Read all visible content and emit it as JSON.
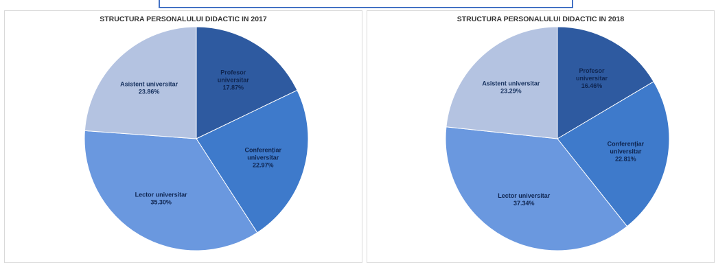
{
  "chart_data": [
    {
      "type": "pie",
      "title": "STRUCTURA PERSONALULUI DIDACTIC IN 2017",
      "slices": [
        {
          "label": "Profesor universitar",
          "percent_text": "17.87%",
          "value": 17.87,
          "color": "#2e5aa0"
        },
        {
          "label": "Conferențiar universitar",
          "percent_text": "22.97%",
          "value": 22.97,
          "color": "#3e7acb"
        },
        {
          "label": "Lector universitar",
          "percent_text": "35.30%",
          "value": 35.3,
          "color": "#6a98df"
        },
        {
          "label": "Asistent universitar",
          "percent_text": "23.86%",
          "value": 23.86,
          "color": "#b4c3e1"
        }
      ]
    },
    {
      "type": "pie",
      "title": "STRUCTURA PERSONALULUI DIDACTIC IN 2018",
      "slices": [
        {
          "label": "Profesor universitar",
          "percent_text": "16.46%",
          "value": 16.46,
          "color": "#2e5aa0"
        },
        {
          "label": "Conferențiar universitar",
          "percent_text": "22.81%",
          "value": 22.81,
          "color": "#3e7acb"
        },
        {
          "label": "Lector universitar",
          "percent_text": "37.34%",
          "value": 37.34,
          "color": "#6a98df"
        },
        {
          "label": "Asistent universitar",
          "percent_text": "23.29%",
          "value": 23.29,
          "color": "#b4c3e1"
        }
      ]
    }
  ]
}
